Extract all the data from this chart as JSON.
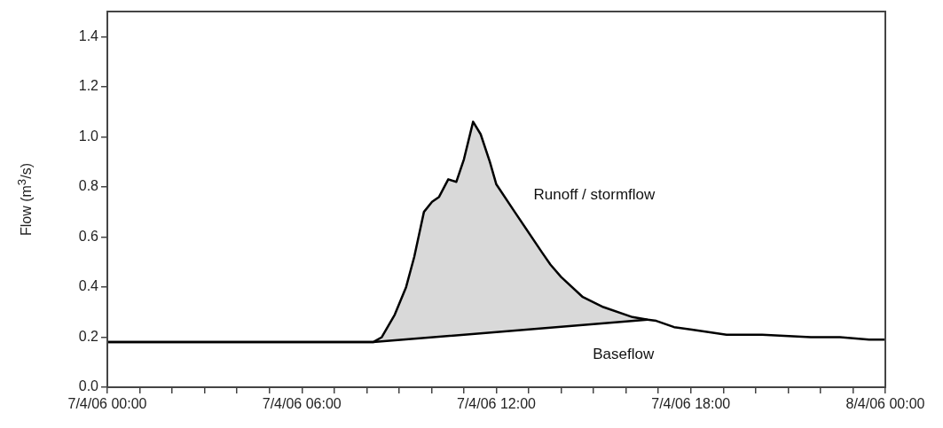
{
  "chart_data": {
    "type": "line",
    "ylabel": "Flow (m$^{3}$/s)",
    "series": [
      {
        "type": "line",
        "color": "#000000",
        "x": [
          "--04-07T00:00",
          "--04-07T08:12",
          "--04-07T08:28",
          "--04-07T08:52",
          "--04-07T09:13",
          "--04-07T09:28",
          "--04-07T09:46",
          "--04-07T10:01",
          "--04-07T10:14",
          "--04-07T10:31",
          "--04-07T10:46",
          "--04-07T11:00",
          "--04-07T11:17",
          "--04-07T11:31",
          "--04-07T11:48",
          "--04-07T12:00",
          "--04-07T12:34",
          "--04-07T13:24",
          "--04-07T13:40",
          "--04-07T14:00",
          "--04-07T14:40",
          "--04-07T15:18",
          "--04-07T16:12",
          "--04-07T16:40",
          "--04-07T16:56",
          "--04-07T17:29",
          "--04-07T18:02",
          "--04-07T19:06",
          "--04-07T20:12",
          "--04-07T21:42",
          "--04-07T22:36",
          "--04-07T23:30",
          "--04-08T00:00"
        ],
        "values": [
          0.18,
          0.18,
          0.2,
          0.29,
          0.4,
          0.52,
          0.7,
          0.74,
          0.76,
          0.83,
          0.82,
          0.91,
          1.06,
          1.01,
          0.9,
          0.81,
          0.7,
          0.54,
          0.49,
          0.44,
          0.36,
          0.32,
          0.28,
          0.27,
          0.265,
          0.24,
          0.23,
          0.21,
          0.21,
          0.2,
          0.2,
          0.19,
          0.19
        ],
        "lower": [
          null,
          0.18,
          0.183,
          0.187,
          0.191,
          0.193,
          0.197,
          0.199,
          0.202,
          0.205,
          0.207,
          0.21,
          0.213,
          0.215,
          0.218,
          0.22,
          0.226,
          0.235,
          0.238,
          0.242,
          0.249,
          0.256,
          0.265,
          0.27,
          null,
          null,
          null,
          null,
          null,
          null,
          null,
          null,
          null
        ],
        "upper": [
          null,
          0.18,
          0.2,
          0.29,
          0.4,
          0.52,
          0.7,
          0.74,
          0.76,
          0.83,
          0.82,
          0.91,
          1.06,
          1.01,
          0.9,
          0.81,
          0.7,
          0.54,
          0.49,
          0.44,
          0.36,
          0.32,
          0.28,
          0.27,
          null,
          null,
          null,
          null,
          null,
          null,
          null,
          null,
          null
        ]
      },
      {
        "type": "line",
        "color": "#000000",
        "x": [
          "--04-07T00:00",
          "--04-07T08:12",
          "--04-07T16:40"
        ],
        "values": [
          0.18,
          0.18,
          0.27
        ]
      }
    ],
    "annotations": [
      "Runoff / stormflow",
      "Baseflow"
    ],
    "xlim": [
      "--04-07T00:00",
      "--04-08T00:00"
    ],
    "xticks": [
      {
        "value": "--04-07T00:00",
        "label": "7/4/06 00:00"
      },
      {
        "value": "--04-07T01:00",
        "label": null
      },
      {
        "value": "--04-07T02:00",
        "label": null
      },
      {
        "value": "--04-07T03:00",
        "label": null
      },
      {
        "value": "--04-07T04:00",
        "label": null
      },
      {
        "value": "--04-07T05:00",
        "label": null
      },
      {
        "value": "--04-07T06:00",
        "label": "7/4/06 06:00"
      },
      {
        "value": "--04-07T07:00",
        "label": null
      },
      {
        "value": "--04-07T08:00",
        "label": null
      },
      {
        "value": "--04-07T09:00",
        "label": null
      },
      {
        "value": "--04-07T10:00",
        "label": null
      },
      {
        "value": "--04-07T11:00",
        "label": null
      },
      {
        "value": "--04-07T12:00",
        "label": "7/4/06 12:00"
      },
      {
        "value": "--04-07T13:00",
        "label": null
      },
      {
        "value": "--04-07T14:00",
        "label": null
      },
      {
        "value": "--04-07T15:00",
        "label": null
      },
      {
        "value": "--04-07T16:00",
        "label": null
      },
      {
        "value": "--04-07T17:00",
        "label": null
      },
      {
        "value": "--04-07T18:00",
        "label": "7/4/06 18:00"
      },
      {
        "value": "--04-07T19:00",
        "label": null
      },
      {
        "value": "--04-07T20:00",
        "label": null
      },
      {
        "value": "--04-07T21:00",
        "label": null
      },
      {
        "value": "--04-07T22:00",
        "label": null
      },
      {
        "value": "--04-07T23:00",
        "label": null
      },
      {
        "value": "--04-08T00:00",
        "label": "8/4/06 00:00"
      }
    ],
    "ylim": [
      0,
      1.5
    ],
    "yticks": [
      {
        "value": 0,
        "label": "0.0"
      },
      {
        "value": 0.2,
        "label": "0.2"
      },
      {
        "value": 0.4,
        "label": "0.4"
      },
      {
        "value": 0.6,
        "label": "0.6"
      },
      {
        "value": 0.8,
        "label": "0.8"
      },
      {
        "value": 1.0,
        "label": "1.0"
      },
      {
        "value": 1.2,
        "label": "1.2"
      },
      {
        "value": 1.4,
        "label": "1.4"
      }
    ],
    "grid": false,
    "legend": false,
    "marker": "none",
    "line_style": "solid"
  }
}
